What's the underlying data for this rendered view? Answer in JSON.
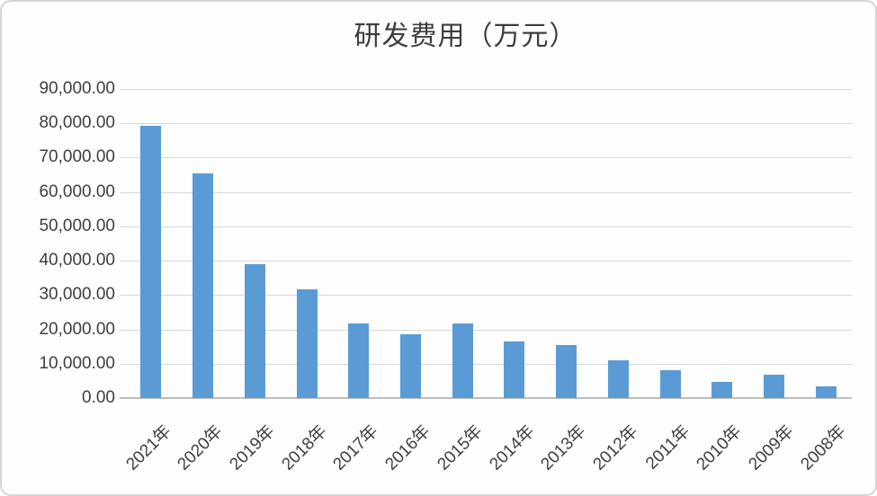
{
  "chart_data": {
    "type": "bar",
    "title": "研发费用（万元）",
    "categories": [
      "2021年",
      "2020年",
      "2019年",
      "2018年",
      "2017年",
      "2016年",
      "2015年",
      "2014年",
      "2013年",
      "2012年",
      "2011年",
      "2010年",
      "2009年",
      "2008年"
    ],
    "values": [
      79300,
      65400,
      38900,
      31600,
      21600,
      18600,
      21700,
      16600,
      15400,
      11000,
      8200,
      4600,
      6900,
      3500
    ],
    "xlabel": "",
    "ylabel": "",
    "ylim": [
      0,
      90000
    ],
    "ytick_step": 10000,
    "ytick_labels": [
      "0.00",
      "10,000.00",
      "20,000.00",
      "30,000.00",
      "40,000.00",
      "50,000.00",
      "60,000.00",
      "70,000.00",
      "80,000.00",
      "90,000.00"
    ],
    "grid": true,
    "legend_position": "none",
    "bar_color": "#5b9bd5",
    "gridline_color": "#d8d8d8",
    "axis_line_color": "#bdbdbd",
    "label_color": "#3f3f3f",
    "title_color": "#3d3d3d"
  }
}
